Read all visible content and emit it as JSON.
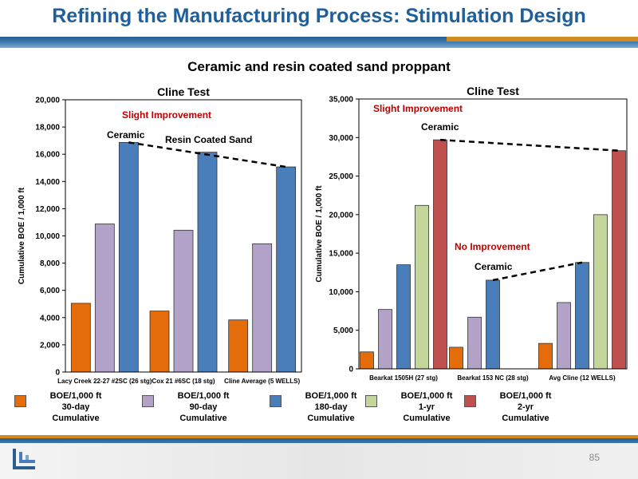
{
  "page": {
    "title": "Refining the Manufacturing Process: Stimulation Design",
    "subtitle": "Ceramic and resin coated sand proppant",
    "page_number": "85"
  },
  "colors": {
    "title": "#1f5f9a",
    "bar_30day": "#e46c0a",
    "bar_90day": "#b3a2c7",
    "bar_180day": "#4a7ebb",
    "bar_1yr": "#c3d69b",
    "bar_2yr": "#c0504d",
    "annotation_red": "#c00000"
  },
  "legend": [
    {
      "label": "BOE/1,000 ft\n30-day\nCumulative",
      "color": "#e46c0a"
    },
    {
      "label": "BOE/1,000 ft\n90-day\nCumulative",
      "color": "#b3a2c7"
    },
    {
      "label": "BOE/1,000 ft\n180-day\nCumulative",
      "color": "#4a7ebb"
    },
    {
      "label": "BOE/1,000 ft\n1-yr\nCumulative",
      "color": "#c3d69b"
    },
    {
      "label": "BOE/1,000 ft\n2-yr\nCumulative",
      "color": "#c0504d"
    }
  ],
  "chart_data": [
    {
      "type": "bar",
      "title": "Cline Test",
      "xlabel": "",
      "ylabel": "Cumulative BOE / 1,000 ft",
      "ylim": [
        0,
        20000
      ],
      "yticks": [
        "0",
        "2,000",
        "4,000",
        "6,000",
        "8,000",
        "10,000",
        "12,000",
        "14,000",
        "16,000",
        "18,000",
        "20,000"
      ],
      "categories": [
        "Lacy Creek 22-27 #2SC (26 stg)",
        "Cox 21 #6SC (18 stg)",
        "Cline Average (5 WELLS)"
      ],
      "series": [
        {
          "name": "BOE/1,000 ft 30-day Cumulative",
          "color": "#e46c0a",
          "values": [
            5050,
            4480,
            3830
          ]
        },
        {
          "name": "BOE/1,000 ft 90-day Cumulative",
          "color": "#b3a2c7",
          "values": [
            10880,
            10420,
            9420
          ]
        },
        {
          "name": "BOE/1,000 ft 180-day Cumulative",
          "color": "#4a7ebb",
          "values": [
            16870,
            16150,
            15070
          ]
        }
      ],
      "annotations": [
        {
          "text": "Slight Improvement",
          "color": "red"
        },
        {
          "text": "Ceramic",
          "color": "black"
        },
        {
          "text": "Resin Coated Sand",
          "color": "black"
        }
      ],
      "trend_line": {
        "from": {
          "category": 0,
          "series": 2
        },
        "to": {
          "category": 2,
          "series": 2
        }
      }
    },
    {
      "type": "bar",
      "title": "Cline Test",
      "xlabel": "",
      "ylabel": "Cumulative BOE / 1,000 ft",
      "ylim": [
        0,
        35000
      ],
      "yticks": [
        "0",
        "5,000",
        "10,000",
        "15,000",
        "20,000",
        "25,000",
        "30,000",
        "35,000"
      ],
      "categories": [
        "Bearkat 1505H (27 stg)",
        "Bearkat 153 NC (28 stg)",
        "Avg Cline (12 WELLS)"
      ],
      "series": [
        {
          "name": "BOE/1,000 ft 30-day Cumulative",
          "color": "#e46c0a",
          "values": [
            2200,
            2800,
            3300
          ]
        },
        {
          "name": "BOE/1,000 ft 90-day Cumulative",
          "color": "#b3a2c7",
          "values": [
            7700,
            6700,
            8600
          ]
        },
        {
          "name": "BOE/1,000 ft 180-day Cumulative",
          "color": "#4a7ebb",
          "values": [
            13500,
            11500,
            13800
          ]
        },
        {
          "name": "BOE/1,000 ft 1-yr Cumulative",
          "color": "#c3d69b",
          "values": [
            21200,
            null,
            20000
          ]
        },
        {
          "name": "BOE/1,000 ft 2-yr Cumulative",
          "color": "#c0504d",
          "values": [
            29700,
            null,
            28300
          ]
        }
      ],
      "annotations": [
        {
          "text": "Slight Improvement",
          "color": "red"
        },
        {
          "text": "Ceramic",
          "color": "black"
        },
        {
          "text": "No Improvement",
          "color": "red"
        },
        {
          "text": "Ceramic",
          "color": "black"
        }
      ],
      "trend_lines": [
        {
          "from": {
            "category": 0,
            "series": 4
          },
          "to": {
            "category": 2,
            "series": 4
          }
        },
        {
          "from": {
            "category": 1,
            "series": 2
          },
          "to": {
            "category": 2,
            "series": 2
          }
        }
      ]
    }
  ]
}
